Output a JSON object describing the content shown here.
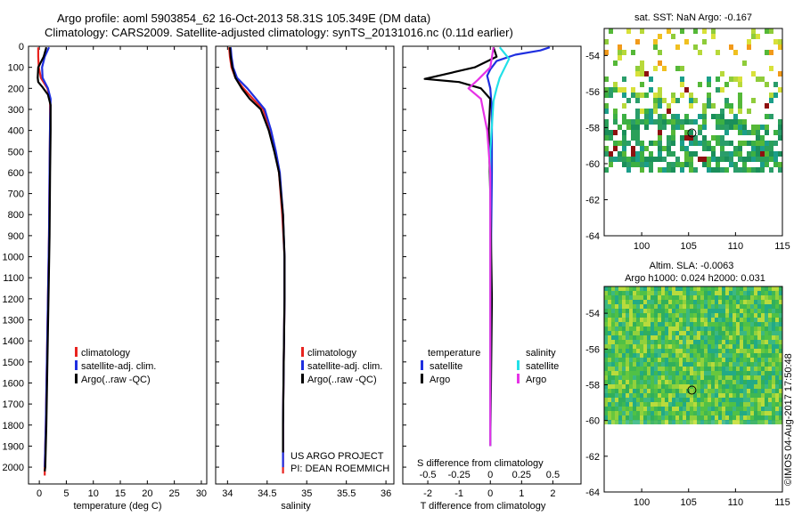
{
  "title_line1": "Argo profile: aoml 5903854_62 16-Oct-2013 58.31S 105.349E (DM data)",
  "title_line2": "Climatology: CARS2009. Satellite-adjusted climatology: synTS_20131016.nc (0.11d earlier)",
  "colors": {
    "climatology": "#e8231f",
    "satellite": "#1f2fe0",
    "argo": "#000000",
    "sal_satellite": "#22e0e8",
    "sal_argo": "#e632e6"
  },
  "chart_data": [
    {
      "type": "line",
      "id": "temperature",
      "xlabel": "temperature (deg C)",
      "ylabel": "",
      "xlim": [
        -2,
        31
      ],
      "ylim": [
        2080,
        0
      ],
      "xticks": [
        0,
        5,
        10,
        15,
        20,
        25,
        30
      ],
      "yticks": [
        0,
        100,
        200,
        300,
        400,
        500,
        600,
        700,
        800,
        900,
        1000,
        1100,
        1200,
        1300,
        1400,
        1500,
        1600,
        1700,
        1800,
        1900,
        2000
      ],
      "legend": [
        "climatology",
        "satellite-adj. clim.",
        "Argo(..raw -QC)"
      ],
      "series": [
        {
          "name": "climatology",
          "color": "#e8231f",
          "x": [
            -0.2,
            -0.2,
            -0.1,
            0.3,
            1.5,
            2.0,
            2.0,
            1.9,
            1.8,
            1.6,
            1.4,
            1.2,
            1.0,
            1.0
          ],
          "y": [
            5,
            50,
            100,
            150,
            200,
            250,
            350,
            600,
            900,
            1200,
            1500,
            1800,
            2000,
            2040
          ]
        },
        {
          "name": "satellite-adj. clim.",
          "color": "#1f2fe0",
          "x": [
            1.8,
            1.0,
            0.5,
            0.6,
            1.6,
            2.1,
            2.0,
            1.9,
            1.8,
            1.6,
            1.4,
            1.2,
            1.0
          ],
          "y": [
            5,
            50,
            100,
            150,
            200,
            250,
            350,
            600,
            900,
            1200,
            1500,
            1800,
            2000
          ]
        },
        {
          "name": "Argo(..raw -QC)",
          "color": "#000000",
          "x": [
            1.3,
            0.8,
            -0.2,
            -0.3,
            -0.2,
            0.6,
            1.6,
            2.1,
            2.1,
            2.0,
            1.9,
            1.7,
            1.5,
            1.3,
            1.1,
            1.0
          ],
          "y": [
            5,
            50,
            100,
            150,
            170,
            195,
            230,
            280,
            400,
            600,
            900,
            1200,
            1500,
            1800,
            2000,
            2020
          ]
        }
      ]
    },
    {
      "type": "line",
      "id": "salinity",
      "xlabel": "salinity",
      "ylabel": "",
      "xlim": [
        33.85,
        36.1
      ],
      "ylim": [
        2080,
        0
      ],
      "xticks": [
        34,
        34.5,
        35,
        35.5,
        36
      ],
      "legend": [
        "climatology",
        "satellite-adj. clim.",
        "Argo(..raw -QC)"
      ],
      "series": [
        {
          "name": "climatology",
          "color": "#e8231f",
          "x": [
            34.02,
            34.03,
            34.05,
            34.1,
            34.2,
            34.32,
            34.45,
            34.54,
            34.6,
            34.65,
            34.69,
            34.72,
            34.72,
            34.71,
            34.7,
            34.7
          ],
          "y": [
            5,
            50,
            100,
            150,
            200,
            250,
            300,
            400,
            500,
            600,
            800,
            1000,
            1200,
            1500,
            1800,
            2030
          ]
        },
        {
          "name": "satellite-adj. clim.",
          "color": "#1f2fe0",
          "x": [
            34.04,
            34.05,
            34.07,
            34.12,
            34.25,
            34.36,
            34.47,
            34.55,
            34.61,
            34.66,
            34.7,
            34.72,
            34.72,
            34.71,
            34.7,
            34.7
          ],
          "y": [
            5,
            50,
            100,
            150,
            200,
            250,
            300,
            400,
            500,
            600,
            800,
            1000,
            1200,
            1500,
            1800,
            2000
          ]
        },
        {
          "name": "Argo(..raw -QC)",
          "color": "#000000",
          "x": [
            34.03,
            34.04,
            34.06,
            34.1,
            34.18,
            34.28,
            34.42,
            34.52,
            34.59,
            34.65,
            34.7,
            34.72,
            34.72,
            34.71,
            34.7,
            34.7
          ],
          "y": [
            5,
            50,
            100,
            150,
            200,
            250,
            300,
            400,
            500,
            600,
            800,
            1000,
            1200,
            1500,
            1800,
            1930
          ]
        }
      ],
      "annotation_line1": "US ARGO PROJECT",
      "annotation_line2": "PI: DEAN ROEMMICH"
    },
    {
      "type": "line",
      "id": "differences",
      "xlabel": "T difference from climatology",
      "xlabel_top": "S difference from climatology",
      "xlim": [
        -2.8,
        2.9
      ],
      "ylim": [
        2080,
        0
      ],
      "xticks": [
        -2,
        -1,
        0,
        1,
        2
      ],
      "xtick_labels_top": [
        "-0.5",
        "-0.25",
        "0",
        "0.25",
        "0.5"
      ],
      "xtick_pos_top": [
        -2,
        -1,
        0,
        1,
        2
      ],
      "legend_headers": [
        "temperature",
        "salinity"
      ],
      "legend": [
        "satellite",
        "Argo",
        "satellite",
        "Argo"
      ],
      "series": [
        {
          "name": "satellite",
          "color": "#1f2fe0",
          "x": [
            1.9,
            1.6,
            0.8,
            0.2,
            0.0,
            -0.1,
            0.0,
            0.05,
            0.05,
            0.02,
            0.0,
            0.0
          ],
          "y": [
            5,
            20,
            40,
            70,
            110,
            140,
            200,
            300,
            600,
            1000,
            1500,
            1900
          ]
        },
        {
          "name": "Argo",
          "color": "#000000",
          "x": [
            0.1,
            0.2,
            -0.5,
            -2.1,
            -1.0,
            -0.3,
            0.0,
            -0.05,
            0.0,
            0.05,
            0.0
          ],
          "y": [
            5,
            50,
            100,
            155,
            170,
            200,
            250,
            400,
            700,
            1200,
            1900
          ]
        },
        {
          "name": "satellite",
          "color": "#22e0e8",
          "x": [
            0.3,
            0.6,
            0.3,
            0.2,
            0.1,
            0.0,
            0.0,
            0.0,
            0.0
          ],
          "y": [
            5,
            60,
            150,
            200,
            260,
            500,
            900,
            1400,
            1900
          ]
        },
        {
          "name": "Argo",
          "color": "#e632e6",
          "x": [
            0.1,
            0.0,
            -0.4,
            -0.7,
            -0.3,
            -0.1,
            0.0,
            0.0,
            0.0
          ],
          "y": [
            5,
            100,
            160,
            200,
            250,
            400,
            600,
            1200,
            1900
          ]
        }
      ]
    },
    {
      "type": "heatmap",
      "id": "sst",
      "title": "sat. SST: NaN Argo: -0.167",
      "xlim": [
        96,
        115
      ],
      "ylim": [
        -64,
        -52.5
      ],
      "xticks": [
        100,
        105,
        110,
        115
      ],
      "yticks": [
        -54,
        -56,
        -58,
        -60,
        -62,
        -64
      ],
      "marker": {
        "x": 105.35,
        "y": -58.3
      }
    },
    {
      "type": "heatmap",
      "id": "sla",
      "title_line1": "Altim. SLA: -0.0063",
      "title_line2": "Argo h1000: 0.024 h2000: 0.031",
      "xlim": [
        96,
        115
      ],
      "ylim": [
        -64,
        -52.5
      ],
      "xticks": [
        100,
        105,
        110,
        115
      ],
      "yticks": [
        -54,
        -56,
        -58,
        -60,
        -62,
        -64
      ],
      "data_ylim": [
        -60,
        -52.5
      ],
      "marker": {
        "x": 105.35,
        "y": -58.3
      }
    }
  ],
  "watermark": "©IMOS 04-Aug-2017 17:50:48"
}
